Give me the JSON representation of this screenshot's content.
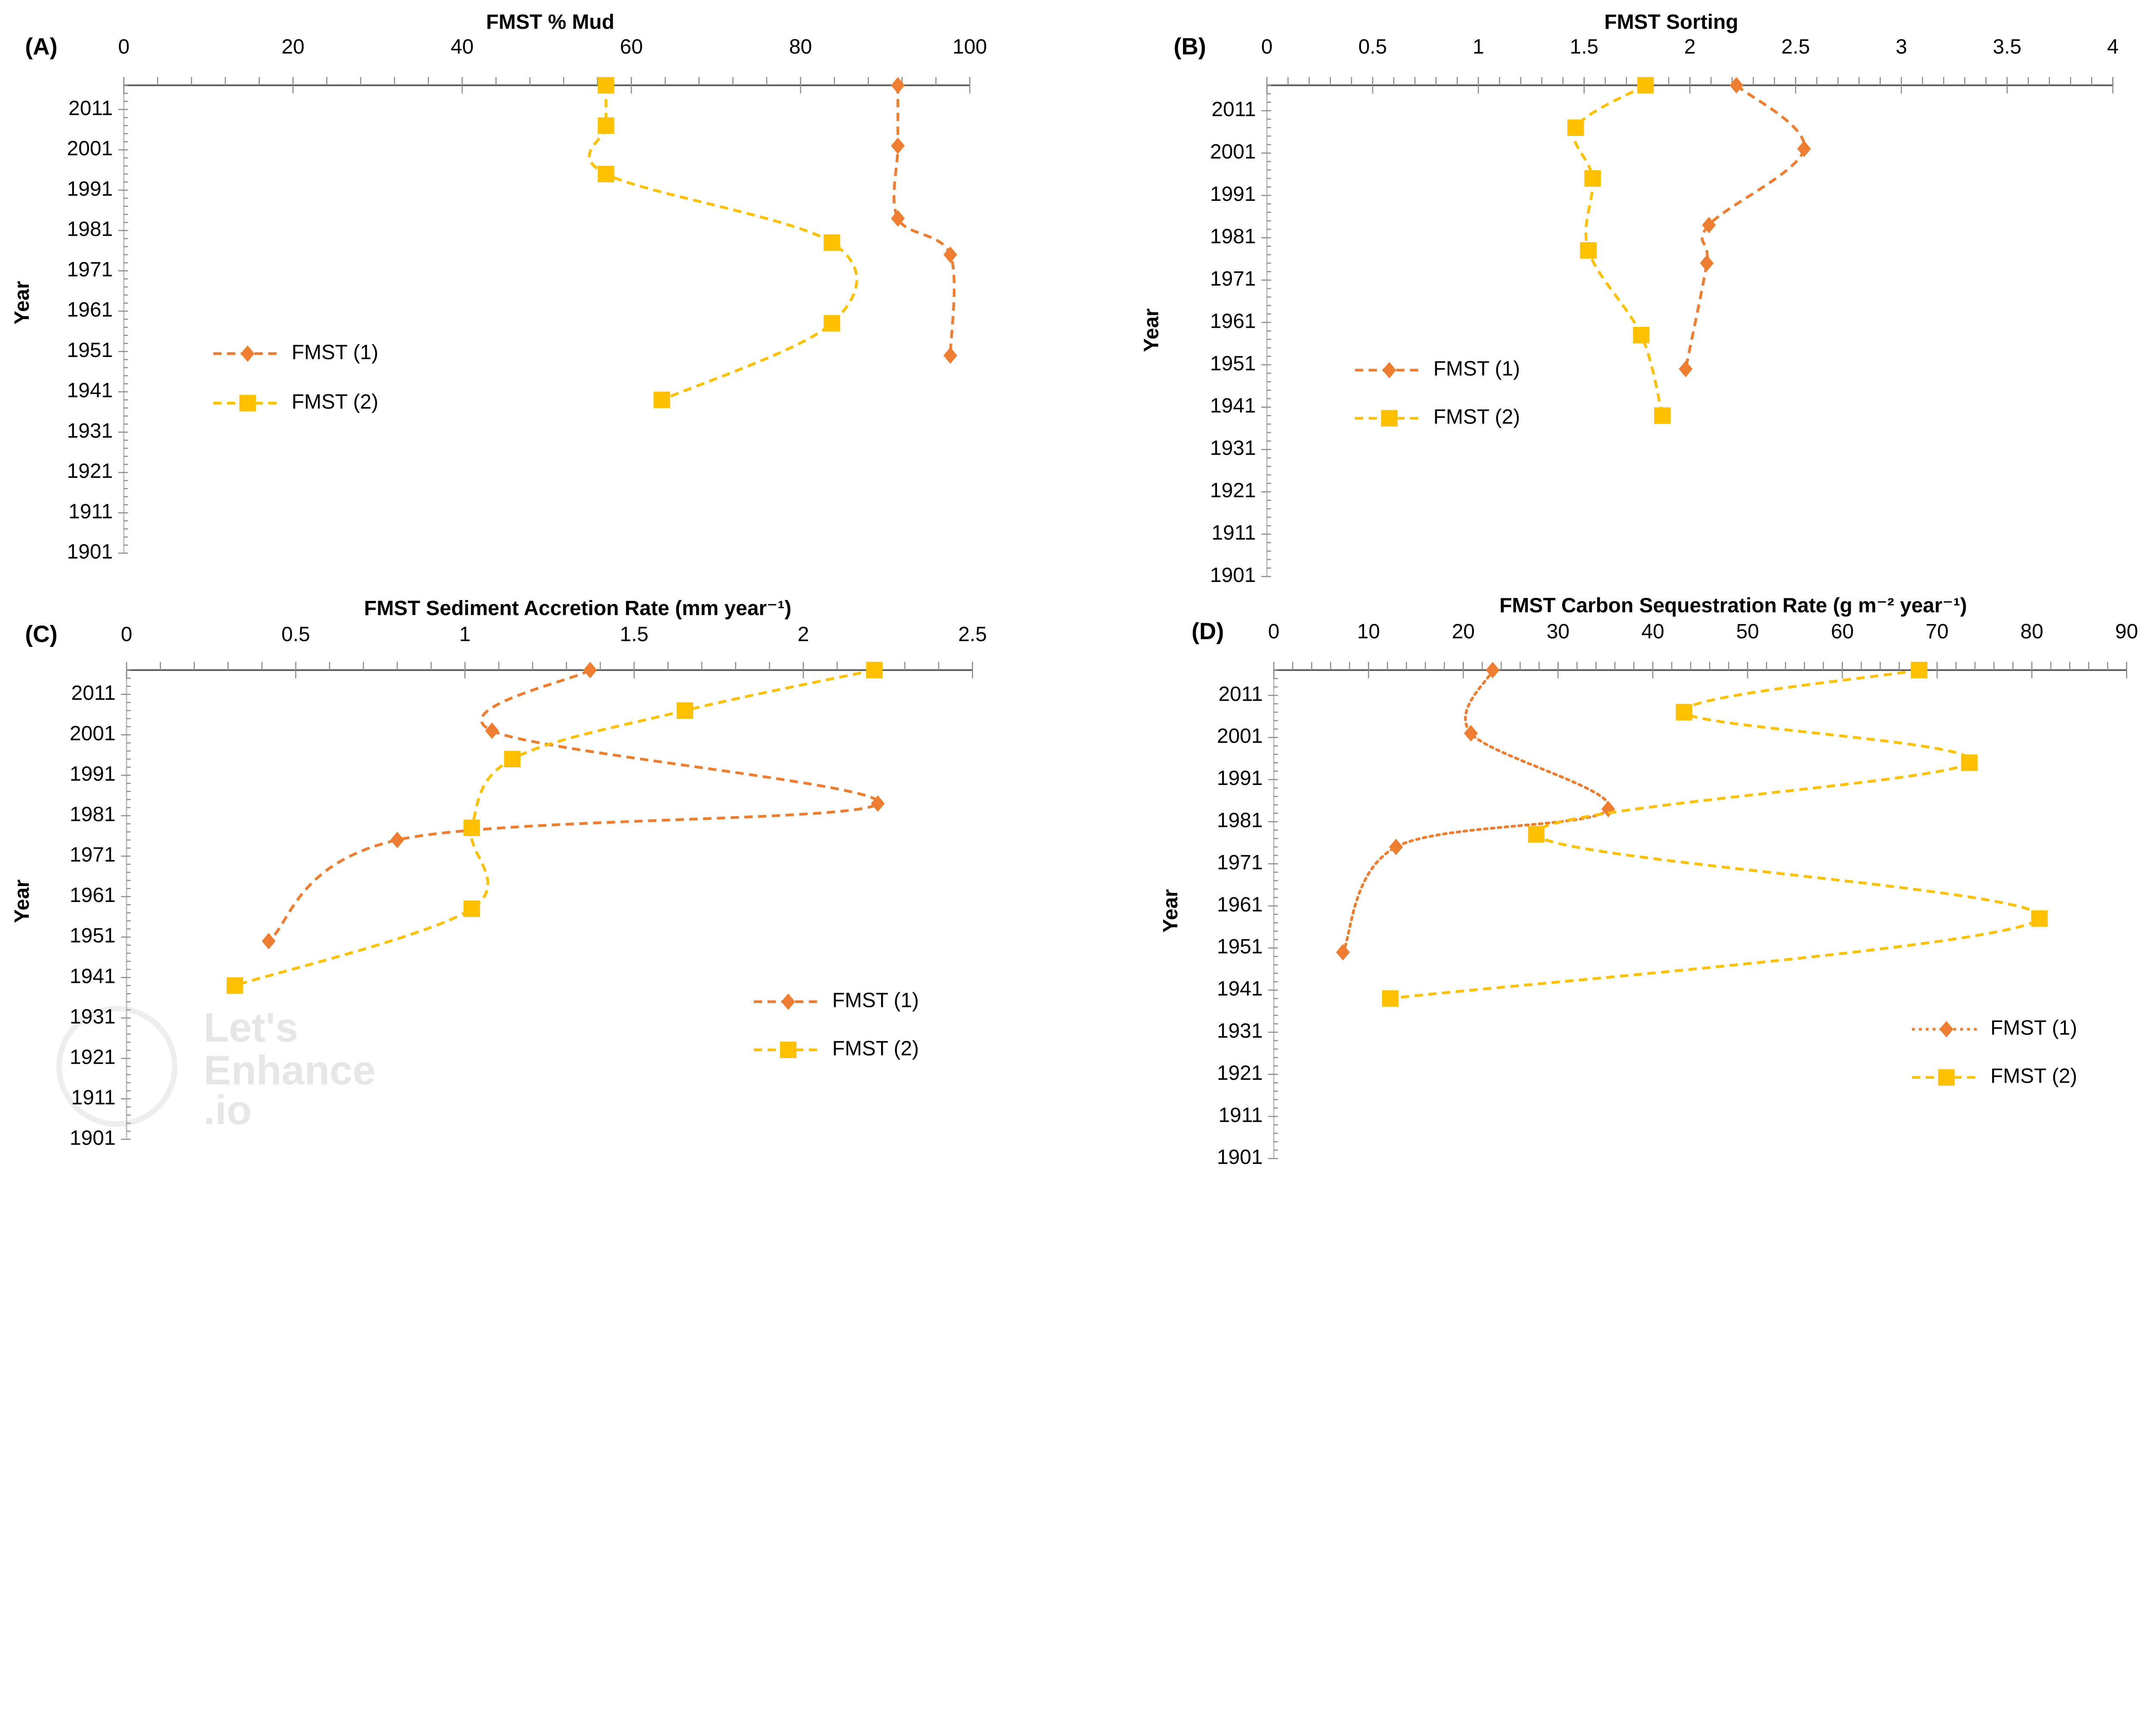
{
  "watermark": "Let's Enhance .io",
  "colors": {
    "fmst1": "#ED7D31",
    "fmst2": "#FFC000",
    "axis": "#595959"
  },
  "chart_data": [
    {
      "panel": "(A)",
      "type": "line",
      "title": "FMST % Mud",
      "ylabel": "Year",
      "xlim": [
        0,
        100
      ],
      "xticks": [
        0,
        20,
        40,
        60,
        80,
        100
      ],
      "xminor": 4,
      "ylim": [
        1901,
        2017
      ],
      "yticks": [
        2011,
        2001,
        1991,
        1981,
        1971,
        1961,
        1951,
        1941,
        1931,
        1921,
        1911,
        1901
      ],
      "y_reversed": false,
      "x_axis_position": "top",
      "grid": false,
      "legend": "middle-left",
      "series": [
        {
          "name": "FMST (1)",
          "marker": "diamond",
          "line": "dashed",
          "color": "#ED7D31",
          "x": [
            91.5,
            91.5,
            91.5,
            97.7,
            97.7
          ],
          "y": [
            2017,
            2002,
            1984,
            1975,
            1950
          ]
        },
        {
          "name": "FMST (2)",
          "marker": "square",
          "line": "dashed",
          "color": "#FFC000",
          "x": [
            57,
            57,
            57,
            83.7,
            83.7,
            63.6
          ],
          "y": [
            2017,
            2007,
            1995,
            1978,
            1958,
            1939
          ]
        }
      ]
    },
    {
      "panel": "(B)",
      "type": "line",
      "title": "FMST Sorting",
      "ylabel": "Year",
      "xlim": [
        0,
        4
      ],
      "xticks": [
        0,
        0.5,
        1,
        1.5,
        2,
        2.5,
        3,
        3.5,
        4
      ],
      "xminor": 0.1,
      "ylim": [
        1901,
        2017
      ],
      "yticks": [
        2011,
        2001,
        1991,
        1981,
        1971,
        1961,
        1951,
        1941,
        1931,
        1921,
        1911,
        1901
      ],
      "x_axis_position": "top",
      "grid": false,
      "legend": "middle-left",
      "series": [
        {
          "name": "FMST (1)",
          "marker": "diamond",
          "line": "dashed",
          "color": "#ED7D31",
          "x": [
            2.22,
            2.54,
            2.09,
            2.08,
            1.98
          ],
          "y": [
            2017,
            2002,
            1984,
            1975,
            1950
          ]
        },
        {
          "name": "FMST (2)",
          "marker": "square",
          "line": "dashed",
          "color": "#FFC000",
          "x": [
            1.79,
            1.46,
            1.54,
            1.52,
            1.77,
            1.87
          ],
          "y": [
            2017,
            2007,
            1995,
            1978,
            1958,
            1939
          ]
        }
      ]
    },
    {
      "panel": "(C)",
      "type": "line",
      "title": "FMST Sediment Accretion Rate (mm year⁻¹)",
      "ylabel": "Year",
      "xlim": [
        0,
        2.5
      ],
      "xticks": [
        0,
        0.5,
        1,
        1.5,
        2,
        2.5
      ],
      "xminor": 0.1,
      "ylim": [
        1901,
        2017
      ],
      "yticks": [
        2011,
        2001,
        1991,
        1981,
        1971,
        1961,
        1951,
        1941,
        1931,
        1921,
        1911,
        1901
      ],
      "x_axis_position": "top",
      "grid": false,
      "legend": "bottom-right",
      "series": [
        {
          "name": "FMST (1)",
          "marker": "diamond",
          "line": "dashed",
          "color": "#ED7D31",
          "x": [
            1.37,
            1.08,
            2.22,
            0.8,
            0.42
          ],
          "y": [
            2017,
            2002,
            1984,
            1975,
            1950
          ]
        },
        {
          "name": "FMST (2)",
          "marker": "square",
          "line": "dashed",
          "color": "#FFC000",
          "x": [
            2.21,
            1.65,
            1.14,
            1.02,
            1.02,
            0.32
          ],
          "y": [
            2017,
            2007,
            1995,
            1978,
            1958,
            1939
          ]
        }
      ]
    },
    {
      "panel": "(D)",
      "type": "line",
      "title": "FMST Carbon Sequestration Rate (g m⁻² year⁻¹)",
      "ylabel": "Year",
      "xlim": [
        0,
        90
      ],
      "xticks": [
        0,
        10,
        20,
        30,
        40,
        50,
        60,
        70,
        80,
        90
      ],
      "xminor": 2,
      "ylim": [
        1901,
        2017
      ],
      "yticks": [
        2011,
        2001,
        1991,
        1981,
        1971,
        1961,
        1951,
        1941,
        1931,
        1921,
        1911,
        1901
      ],
      "x_axis_position": "top",
      "grid": false,
      "legend": "bottom-right",
      "series": [
        {
          "name": "FMST (1)",
          "marker": "diamond",
          "line": "dotted",
          "color": "#ED7D31",
          "x": [
            23.1,
            20.8,
            35.3,
            12.9,
            7.3
          ],
          "y": [
            2017,
            2002,
            1984,
            1975,
            1950
          ]
        },
        {
          "name": "FMST (2)",
          "marker": "square",
          "line": "dashed",
          "color": "#FFC000",
          "x": [
            68.1,
            43.3,
            73.4,
            27.7,
            80.8,
            12.3
          ],
          "y": [
            2017,
            2007,
            1995,
            1978,
            1958,
            1939
          ]
        }
      ]
    }
  ]
}
